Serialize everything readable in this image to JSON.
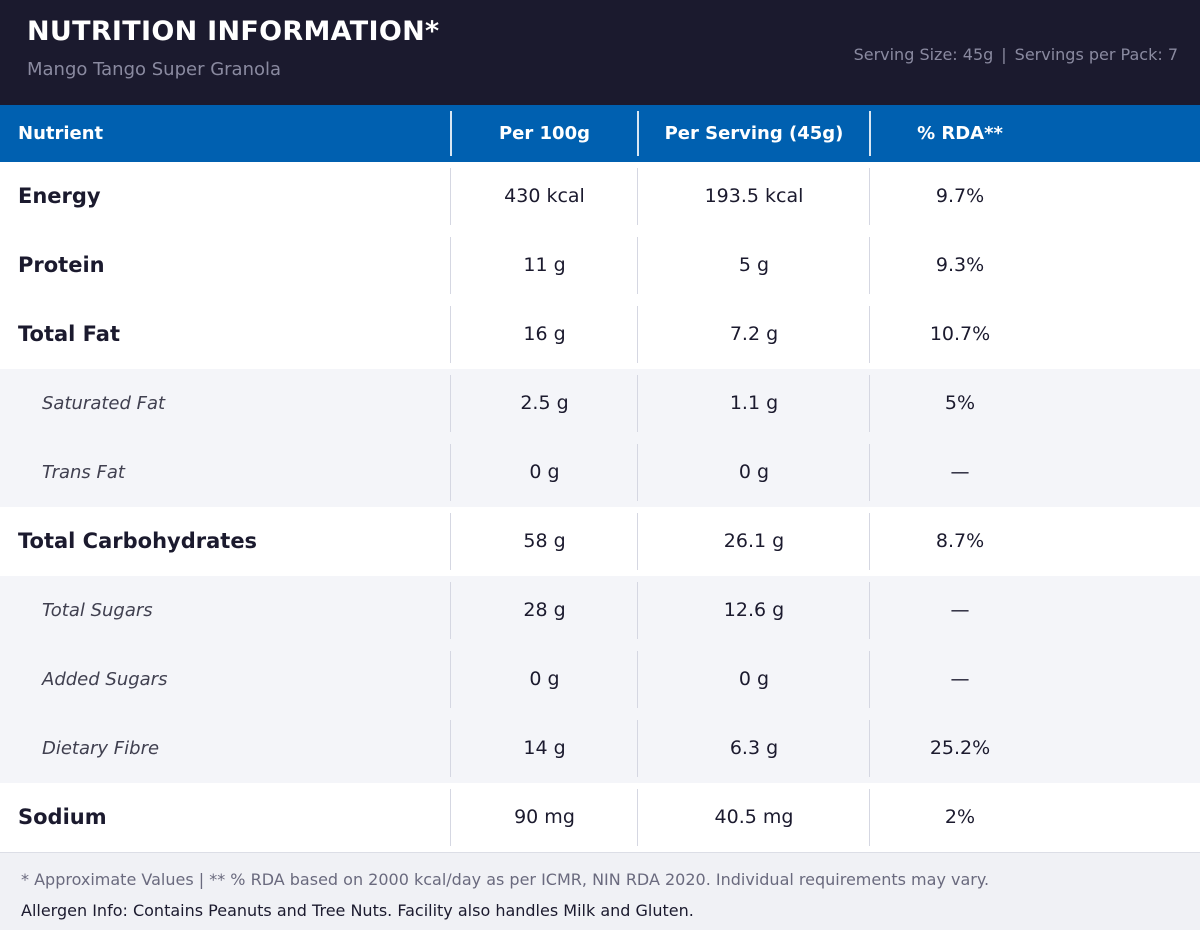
{
  "header": {
    "title": "NUTRITION INFORMATION*",
    "product": "Mango Tango Super Granola",
    "serving_size": "Serving Size: 45g",
    "separator": "|",
    "servings_per_pack": "Servings per Pack: 7"
  },
  "columns": [
    "Nutrient",
    "Per 100g",
    "Per Serving (45g)",
    "% RDA**"
  ],
  "rows": [
    {
      "name": "Energy",
      "level": "main",
      "per100": "430 kcal",
      "perServing": "193.5 kcal",
      "rda": "9.7%"
    },
    {
      "name": "Protein",
      "level": "main",
      "per100": "11 g",
      "perServing": "5 g",
      "rda": "9.3%"
    },
    {
      "name": "Total Fat",
      "level": "main",
      "per100": "16 g",
      "perServing": "7.2 g",
      "rda": "10.7%"
    },
    {
      "name": "Saturated Fat",
      "level": "sub",
      "per100": "2.5 g",
      "perServing": "1.1 g",
      "rda": "5%"
    },
    {
      "name": "Trans Fat",
      "level": "sub",
      "per100": "0 g",
      "perServing": "0 g",
      "rda": "—"
    },
    {
      "name": "Total Carbohydrates",
      "level": "main",
      "per100": "58 g",
      "perServing": "26.1 g",
      "rda": "8.7%"
    },
    {
      "name": "Total Sugars",
      "level": "sub",
      "per100": "28 g",
      "perServing": "12.6 g",
      "rda": "—"
    },
    {
      "name": "Added Sugars",
      "level": "sub",
      "per100": "0 g",
      "perServing": "0 g",
      "rda": "—"
    },
    {
      "name": "Dietary Fibre",
      "level": "sub",
      "per100": "14 g",
      "perServing": "6.3 g",
      "rda": "25.2%"
    },
    {
      "name": "Sodium",
      "level": "main",
      "per100": "90 mg",
      "perServing": "40.5 mg",
      "rda": "2%"
    }
  ],
  "footer": {
    "note": "* Approximate Values  |  ** % RDA based on 2000 kcal/day as per ICMR, NIN RDA 2020. Individual requirements may vary.",
    "allergen": "Allergen Info: Contains Peanuts and Tree Nuts. Facility also handles Milk and Gluten."
  },
  "colors": {
    "header_bg": "#1b1a2e",
    "table_header_bg": "#0060b0",
    "sub_row_bg": "#f4f5f9",
    "footer_bg": "#f0f1f5"
  }
}
